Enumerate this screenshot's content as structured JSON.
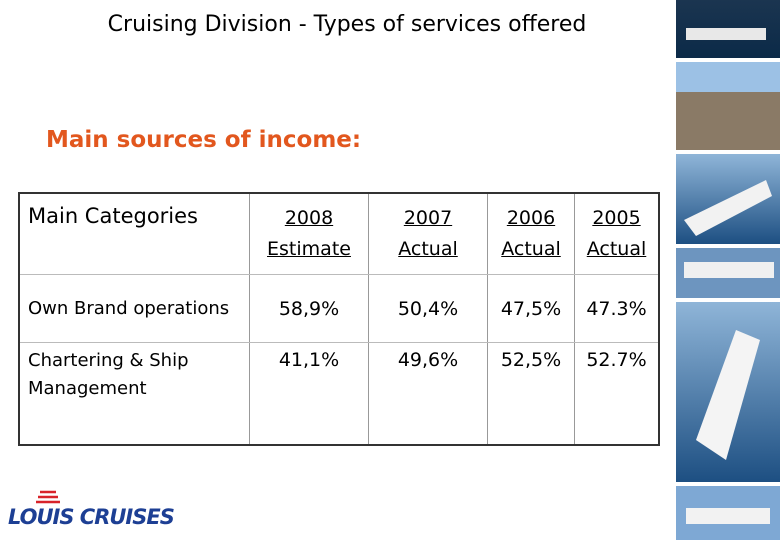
{
  "header": {
    "title": "Cruising Division - Types of services offered",
    "subtitle": "Main sources of income:"
  },
  "table": {
    "header": [
      "Main Categories",
      {
        "year": "2008",
        "status": "Estimate"
      },
      {
        "year": "2007",
        "status": "Actual"
      },
      {
        "year": "2006",
        "status": "Actual"
      },
      {
        "year": "2005",
        "status": "Actual"
      }
    ],
    "rows": [
      [
        "Own Brand operations",
        "58,9%",
        "50,4%",
        "47,5%",
        "47.3%"
      ],
      [
        "Chartering & Ship Management",
        "41,1%",
        "49,6%",
        "52,5%",
        "52.7%"
      ]
    ]
  },
  "footer": {
    "logo": "LOUIS CRUISES"
  }
}
